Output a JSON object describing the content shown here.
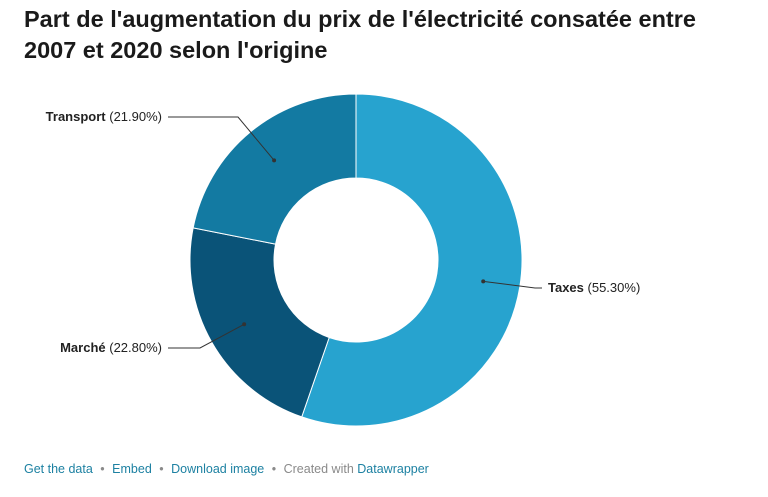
{
  "title": "Part de l'augmentation du prix de l'électricité consatée entre 2007 et 2020 selon l'origine",
  "chart_data": {
    "type": "pie",
    "variant": "donut",
    "title": "Part de l'augmentation du prix de l'électricité consatée entre 2007 et 2020 selon l'origine",
    "slices": [
      {
        "label": "Taxes",
        "value": 55.3,
        "display": "(55.30%)",
        "color": "#27a3cf"
      },
      {
        "label": "Marché",
        "value": 22.8,
        "display": "(22.80%)",
        "color": "#0a5378"
      },
      {
        "label": "Transport",
        "value": 21.9,
        "display": "(21.90%)",
        "color": "#137aa2"
      }
    ]
  },
  "footer": {
    "get_data": "Get the data",
    "embed": "Embed",
    "download": "Download image",
    "created_with": "Created with",
    "brand": "Datawrapper",
    "separator": "•"
  }
}
